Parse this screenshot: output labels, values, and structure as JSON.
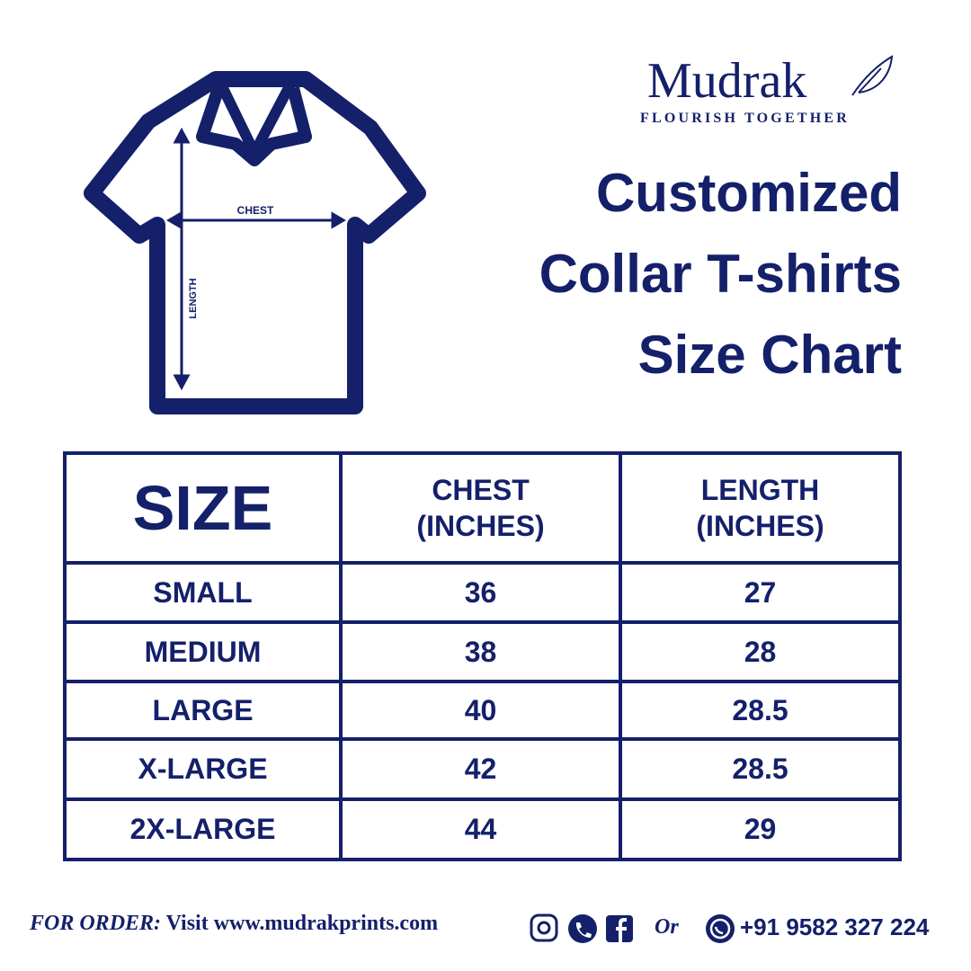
{
  "brand": {
    "name": "Mudrak",
    "tagline": "FLOURISH TOGETHER"
  },
  "diagram": {
    "chest_label": "CHEST",
    "length_label": "LENGTH"
  },
  "title": [
    "Customized",
    "Collar T-shirts",
    "Size Chart"
  ],
  "table": {
    "header": [
      [
        "SIZE"
      ],
      [
        "CHEST",
        "(INCHES)"
      ],
      [
        "LENGTH",
        "(INCHES)"
      ]
    ],
    "rows": [
      [
        "SMALL",
        36,
        27
      ],
      [
        "MEDIUM",
        38,
        28
      ],
      [
        "LARGE",
        40,
        28.5
      ],
      [
        "X-LARGE",
        42,
        28.5
      ],
      [
        "2X-LARGE",
        44,
        29
      ]
    ]
  },
  "footer": {
    "order_label": "FOR ORDER:",
    "visit_text": "Visit www.mudrakprints.com",
    "or_text": "Or",
    "phone": "+91 9582 327 224"
  }
}
